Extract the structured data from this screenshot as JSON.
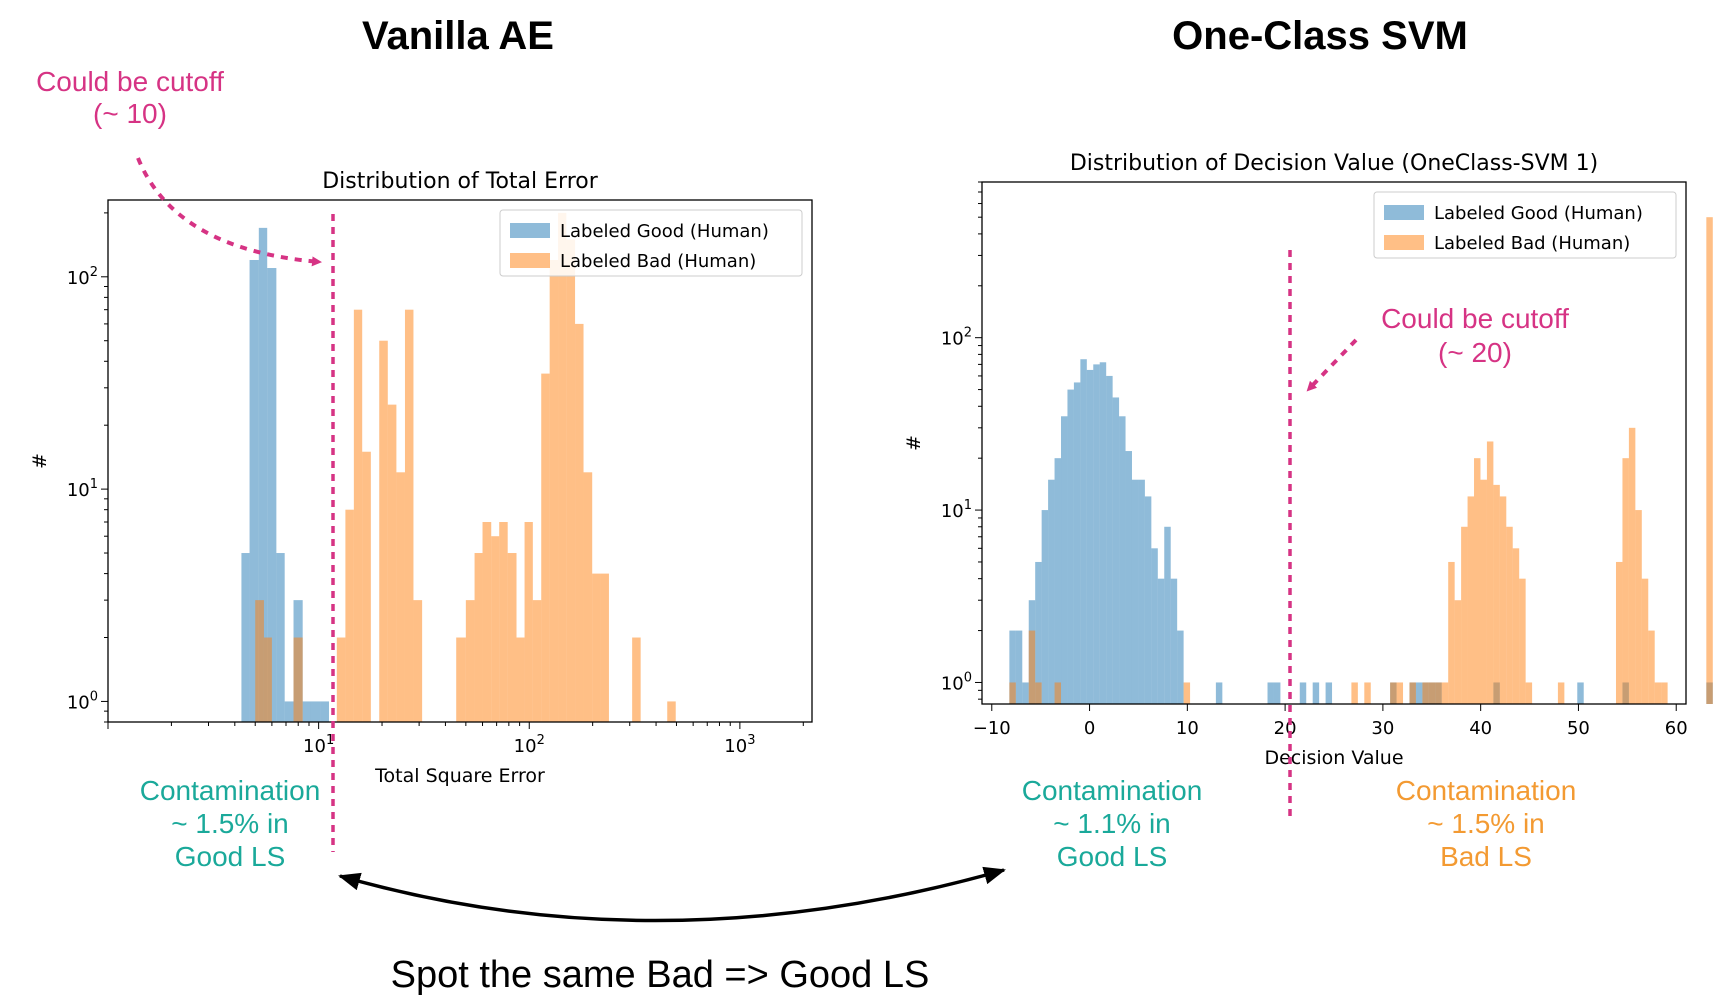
{
  "headings": {
    "left": "Vanilla AE",
    "right": "One-Class SVM"
  },
  "annotations": {
    "cutoff_left": {
      "line1": "Could be cutoff",
      "line2": "(~ 10)"
    },
    "cutoff_right": {
      "line1": "Could be cutoff",
      "line2": "(~ 20)"
    },
    "contam_left": [
      "Contamination",
      "~ 1.5% in",
      "Good LS"
    ],
    "contam_mid": [
      "Contamination",
      "~ 1.1% in",
      "Good LS"
    ],
    "contam_right": [
      "Contamination",
      "~ 1.5% in",
      "Bad LS"
    ],
    "footer": "Spot the same Bad => Good LS"
  },
  "colors": {
    "good": "#1f77b4",
    "bad": "#ff7f0e",
    "annotation_pink": "#d63384",
    "contam_teal": "#1aa99a",
    "contam_orange": "#f39a32"
  },
  "chart_data": [
    {
      "type": "histogram",
      "title": "Distribution of Total Error",
      "xlabel": "Total Square Error",
      "ylabel": "#",
      "xscale": "log",
      "yscale": "log",
      "xlim": [
        1.0,
        2200
      ],
      "ylim": [
        0.8,
        230
      ],
      "xticks": [
        {
          "value": 10,
          "label": "10^1"
        },
        {
          "value": 100,
          "label": "10^2"
        },
        {
          "value": 1000,
          "label": "10^3"
        }
      ],
      "yticks": [
        {
          "value": 1,
          "label": "10^0"
        },
        {
          "value": 10,
          "label": "10^1"
        },
        {
          "value": 100,
          "label": "10^2"
        }
      ],
      "legend_position": "top-right",
      "cutoff_x": 12,
      "series": [
        {
          "name": "Labeled Good (Human)",
          "color": "#1f77b4",
          "bins": [
            {
              "x0": 4.3,
              "x1": 4.7,
              "count": 5
            },
            {
              "x0": 4.7,
              "x1": 5.2,
              "count": 120
            },
            {
              "x0": 5.2,
              "x1": 5.7,
              "count": 170
            },
            {
              "x0": 5.7,
              "x1": 6.3,
              "count": 110
            },
            {
              "x0": 6.3,
              "x1": 6.9,
              "count": 5
            },
            {
              "x0": 6.9,
              "x1": 7.6,
              "count": 1
            },
            {
              "x0": 7.6,
              "x1": 8.4,
              "count": 3
            },
            {
              "x0": 8.4,
              "x1": 9.2,
              "count": 1
            },
            {
              "x0": 9.2,
              "x1": 10.2,
              "count": 1
            },
            {
              "x0": 10.2,
              "x1": 11.2,
              "count": 1
            }
          ]
        },
        {
          "name": "Labeled Bad (Human)",
          "color": "#ff7f0e",
          "bins": [
            {
              "x0": 5.0,
              "x1": 5.5,
              "count": 3
            },
            {
              "x0": 5.5,
              "x1": 6.0,
              "count": 2
            },
            {
              "x0": 7.6,
              "x1": 8.4,
              "count": 2
            },
            {
              "x0": 12.2,
              "x1": 13.4,
              "count": 2
            },
            {
              "x0": 13.4,
              "x1": 14.7,
              "count": 8
            },
            {
              "x0": 14.7,
              "x1": 16.1,
              "count": 70
            },
            {
              "x0": 16.1,
              "x1": 17.7,
              "count": 15
            },
            {
              "x0": 19.4,
              "x1": 21.3,
              "count": 50
            },
            {
              "x0": 21.3,
              "x1": 23.4,
              "count": 25
            },
            {
              "x0": 23.4,
              "x1": 25.7,
              "count": 12
            },
            {
              "x0": 25.7,
              "x1": 28.2,
              "count": 70
            },
            {
              "x0": 28.2,
              "x1": 31.0,
              "count": 3
            },
            {
              "x0": 45,
              "x1": 50,
              "count": 2
            },
            {
              "x0": 50,
              "x1": 55,
              "count": 3
            },
            {
              "x0": 55,
              "x1": 60,
              "count": 5
            },
            {
              "x0": 60,
              "x1": 66,
              "count": 7
            },
            {
              "x0": 66,
              "x1": 72,
              "count": 6
            },
            {
              "x0": 72,
              "x1": 79,
              "count": 7
            },
            {
              "x0": 79,
              "x1": 87,
              "count": 5
            },
            {
              "x0": 87,
              "x1": 95,
              "count": 2
            },
            {
              "x0": 95,
              "x1": 104,
              "count": 7
            },
            {
              "x0": 104,
              "x1": 114,
              "count": 3
            },
            {
              "x0": 114,
              "x1": 125,
              "count": 35
            },
            {
              "x0": 125,
              "x1": 137,
              "count": 120
            },
            {
              "x0": 137,
              "x1": 150,
              "count": 200
            },
            {
              "x0": 150,
              "x1": 165,
              "count": 150
            },
            {
              "x0": 165,
              "x1": 181,
              "count": 60
            },
            {
              "x0": 181,
              "x1": 199,
              "count": 12
            },
            {
              "x0": 199,
              "x1": 218,
              "count": 4
            },
            {
              "x0": 218,
              "x1": 239,
              "count": 4
            },
            {
              "x0": 308,
              "x1": 338,
              "count": 2
            },
            {
              "x0": 452,
              "x1": 496,
              "count": 1
            }
          ]
        }
      ]
    },
    {
      "type": "histogram",
      "title": "Distribution of Decision Value (OneClass-SVM 1)",
      "xlabel": "Decision Value",
      "ylabel": "#",
      "xscale": "linear",
      "yscale": "log",
      "xlim": [
        -11,
        61
      ],
      "ylim": [
        0.75,
        800
      ],
      "xticks": [
        {
          "value": -10,
          "label": "−10"
        },
        {
          "value": 0,
          "label": "0"
        },
        {
          "value": 10,
          "label": "10"
        },
        {
          "value": 20,
          "label": "20"
        },
        {
          "value": 30,
          "label": "30"
        },
        {
          "value": 40,
          "label": "40"
        },
        {
          "value": 50,
          "label": "50"
        },
        {
          "value": 60,
          "label": "60"
        }
      ],
      "yticks": [
        {
          "value": 1,
          "label": "10^0"
        },
        {
          "value": 10,
          "label": "10^1"
        },
        {
          "value": 100,
          "label": "10^2"
        }
      ],
      "legend_position": "top-right",
      "cutoff_x": 19.5,
      "series": [
        {
          "name": "Labeled Good (Human)",
          "color": "#1f77b4",
          "bin_start": -8.2,
          "bin_width": 0.66,
          "counts": [
            2,
            2,
            1,
            3,
            5,
            10,
            15,
            20,
            35,
            50,
            55,
            75,
            65,
            70,
            72,
            60,
            45,
            35,
            22,
            15,
            15,
            12,
            6,
            4,
            8,
            4,
            2,
            0,
            0,
            0,
            0,
            0,
            1,
            0,
            0,
            0,
            0,
            0,
            0,
            0,
            1,
            1,
            0,
            0,
            0,
            1,
            0,
            1,
            0,
            1,
            0,
            0,
            0,
            0,
            0,
            0,
            0,
            0,
            0,
            1,
            0,
            0,
            1,
            1,
            1,
            1,
            1,
            0,
            0,
            0,
            0,
            0,
            0,
            0,
            0,
            1,
            0,
            0,
            0,
            0,
            0,
            0,
            0,
            0,
            0,
            0,
            0,
            0,
            1,
            0,
            0,
            0,
            0,
            0,
            0,
            1,
            0,
            0,
            0,
            0,
            0,
            0,
            0,
            0,
            0,
            0,
            0,
            0,
            1,
            0,
            1
          ]
        },
        {
          "name": "Labeled Bad (Human)",
          "color": "#ff7f0e",
          "bin_start": -8.2,
          "bin_width": 0.66,
          "counts": [
            1,
            0,
            0,
            2,
            1,
            0,
            0,
            1,
            0,
            0,
            0,
            0,
            0,
            0,
            0,
            0,
            0,
            0,
            0,
            0,
            0,
            0,
            0,
            0,
            0,
            0,
            0,
            1,
            0,
            0,
            0,
            0,
            0,
            0,
            0,
            0,
            0,
            0,
            0,
            0,
            0,
            0,
            0,
            0,
            0,
            0,
            0,
            0,
            0,
            0,
            0,
            0,
            0,
            1,
            0,
            1,
            0,
            0,
            0,
            1,
            1,
            0,
            1,
            0,
            1,
            1,
            1,
            1,
            5,
            3,
            8,
            12,
            20,
            15,
            25,
            14,
            12,
            8,
            6,
            4,
            1,
            0,
            0,
            0,
            0,
            1,
            0,
            0,
            0,
            0,
            0,
            0,
            0,
            0,
            5,
            20,
            30,
            10,
            4,
            2,
            1,
            1,
            0,
            0,
            0,
            0,
            0,
            0,
            500
          ]
        }
      ]
    }
  ]
}
